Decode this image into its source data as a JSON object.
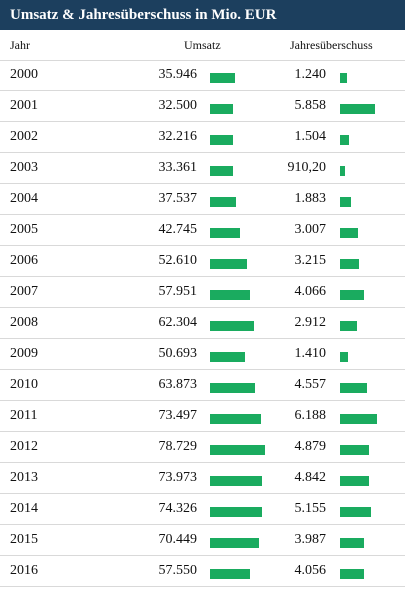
{
  "colors": {
    "header_bg": "#1c3f5e",
    "bar": "#1aab5f",
    "grid": "#d9d9d9"
  },
  "title": "Umsatz & Jahresüberschuss in Mio. EUR",
  "columns": {
    "year": "Jahr",
    "umsatz": "Umsatz",
    "jahresueberschuss": "Jahresüberschuss"
  },
  "rows": [
    {
      "year": "2000",
      "umsatz": "35.946",
      "jahresueberschuss": "1.240"
    },
    {
      "year": "2001",
      "umsatz": "32.500",
      "jahresueberschuss": "5.858"
    },
    {
      "year": "2002",
      "umsatz": "32.216",
      "jahresueberschuss": "1.504"
    },
    {
      "year": "2003",
      "umsatz": "33.361",
      "jahresueberschuss": "910,20"
    },
    {
      "year": "2004",
      "umsatz": "37.537",
      "jahresueberschuss": "1.883"
    },
    {
      "year": "2005",
      "umsatz": "42.745",
      "jahresueberschuss": "3.007"
    },
    {
      "year": "2006",
      "umsatz": "52.610",
      "jahresueberschuss": "3.215"
    },
    {
      "year": "2007",
      "umsatz": "57.951",
      "jahresueberschuss": "4.066"
    },
    {
      "year": "2008",
      "umsatz": "62.304",
      "jahresueberschuss": "2.912"
    },
    {
      "year": "2009",
      "umsatz": "50.693",
      "jahresueberschuss": "1.410"
    },
    {
      "year": "2010",
      "umsatz": "63.873",
      "jahresueberschuss": "4.557"
    },
    {
      "year": "2011",
      "umsatz": "73.497",
      "jahresueberschuss": "6.188"
    },
    {
      "year": "2012",
      "umsatz": "78.729",
      "jahresueberschuss": "4.879"
    },
    {
      "year": "2013",
      "umsatz": "73.973",
      "jahresueberschuss": "4.842"
    },
    {
      "year": "2014",
      "umsatz": "74.326",
      "jahresueberschuss": "5.155"
    },
    {
      "year": "2015",
      "umsatz": "70.449",
      "jahresueberschuss": "3.987"
    },
    {
      "year": "2016",
      "umsatz": "57.550",
      "jahresueberschuss": "4.056"
    }
  ],
  "chart_data": {
    "type": "table",
    "title": "Umsatz & Jahresüberschuss in Mio. EUR",
    "categories": [
      "2000",
      "2001",
      "2002",
      "2003",
      "2004",
      "2005",
      "2006",
      "2007",
      "2008",
      "2009",
      "2010",
      "2011",
      "2012",
      "2013",
      "2014",
      "2015",
      "2016"
    ],
    "series": [
      {
        "name": "Umsatz",
        "values": [
          35946,
          32500,
          32216,
          33361,
          37537,
          42745,
          52610,
          57951,
          62304,
          50693,
          63873,
          73497,
          78729,
          73973,
          74326,
          70449,
          57550
        ]
      },
      {
        "name": "Jahresüberschuss",
        "values": [
          1240,
          5858,
          1504,
          910.2,
          1883,
          3007,
          3215,
          4066,
          2912,
          1410,
          4557,
          6188,
          4879,
          4842,
          5155,
          3987,
          4056
        ]
      }
    ]
  }
}
